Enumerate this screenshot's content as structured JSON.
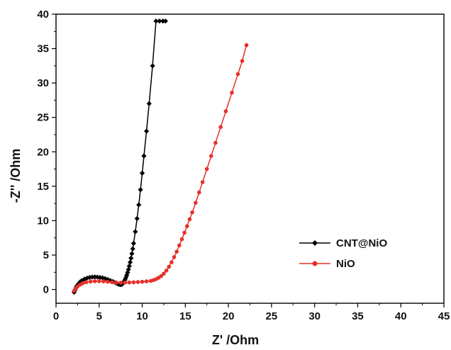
{
  "chart_data": {
    "type": "scatter",
    "xlabel": "Z' /Ohm",
    "ylabel": "-Z'' /Ohm",
    "xlim": [
      0,
      45
    ],
    "ylim": [
      -2,
      40
    ],
    "xticks": [
      "0",
      "5",
      "10",
      "15",
      "20",
      "25",
      "30",
      "35",
      "40",
      "45"
    ],
    "yticks": [
      "0",
      "5",
      "10",
      "15",
      "20",
      "25",
      "30",
      "35",
      "40"
    ],
    "grid": false,
    "legend_position": "right",
    "series": [
      {
        "name": "CNT@NiO",
        "color": "#000000",
        "marker": "diamond",
        "x": [
          2.1,
          2.2,
          2.3,
          2.4,
          2.6,
          2.8,
          3.0,
          3.3,
          3.6,
          3.9,
          4.2,
          4.5,
          4.8,
          5.1,
          5.4,
          5.7,
          6.0,
          6.3,
          6.6,
          6.9,
          7.1,
          7.3,
          7.45,
          7.6,
          7.7,
          7.8,
          7.9,
          8.0,
          8.1,
          8.2,
          8.3,
          8.4,
          8.5,
          8.6,
          8.7,
          8.8,
          8.9,
          9.0,
          9.2,
          9.4,
          9.6,
          9.8,
          10.0,
          10.2,
          10.5,
          10.8,
          11.2,
          11.6,
          12.0,
          12.4,
          12.7
        ],
        "y": [
          -0.4,
          -0.1,
          0.2,
          0.5,
          0.8,
          1.1,
          1.3,
          1.5,
          1.65,
          1.75,
          1.8,
          1.82,
          1.8,
          1.75,
          1.68,
          1.58,
          1.45,
          1.3,
          1.15,
          0.98,
          0.85,
          0.75,
          0.7,
          0.72,
          0.8,
          0.95,
          1.15,
          1.4,
          1.7,
          2.05,
          2.45,
          2.9,
          3.4,
          3.95,
          4.55,
          5.2,
          5.9,
          6.7,
          8.4,
          10.3,
          12.3,
          14.5,
          16.9,
          19.4,
          23.0,
          27.0,
          32.5,
          39.0,
          39.0,
          39.0,
          39.0
        ]
      },
      {
        "name": "NiO",
        "color": "#e8302a",
        "marker": "circle",
        "x": [
          2.1,
          2.3,
          2.5,
          2.8,
          3.1,
          3.5,
          4.0,
          4.5,
          5.0,
          5.5,
          6.0,
          6.5,
          7.0,
          7.5,
          8.0,
          8.5,
          9.0,
          9.5,
          10.0,
          10.5,
          11.0,
          11.3,
          11.6,
          11.9,
          12.2,
          12.5,
          12.8,
          13.1,
          13.4,
          13.7,
          14.0,
          14.3,
          14.6,
          14.9,
          15.2,
          15.5,
          15.8,
          16.2,
          16.6,
          17.0,
          17.5,
          18.0,
          18.5,
          19.1,
          19.7,
          20.4,
          21.1,
          21.6,
          22.1
        ],
        "y": [
          -0.2,
          0.15,
          0.45,
          0.7,
          0.9,
          1.05,
          1.15,
          1.2,
          1.2,
          1.18,
          1.12,
          1.05,
          1.0,
          0.98,
          1.0,
          1.02,
          1.05,
          1.08,
          1.12,
          1.18,
          1.25,
          1.35,
          1.5,
          1.7,
          1.95,
          2.3,
          2.75,
          3.3,
          3.95,
          4.7,
          5.5,
          6.4,
          7.3,
          8.25,
          9.2,
          10.2,
          11.2,
          12.6,
          14.1,
          15.6,
          17.5,
          19.4,
          21.3,
          23.6,
          25.9,
          28.6,
          31.3,
          33.2,
          35.5
        ]
      }
    ]
  }
}
